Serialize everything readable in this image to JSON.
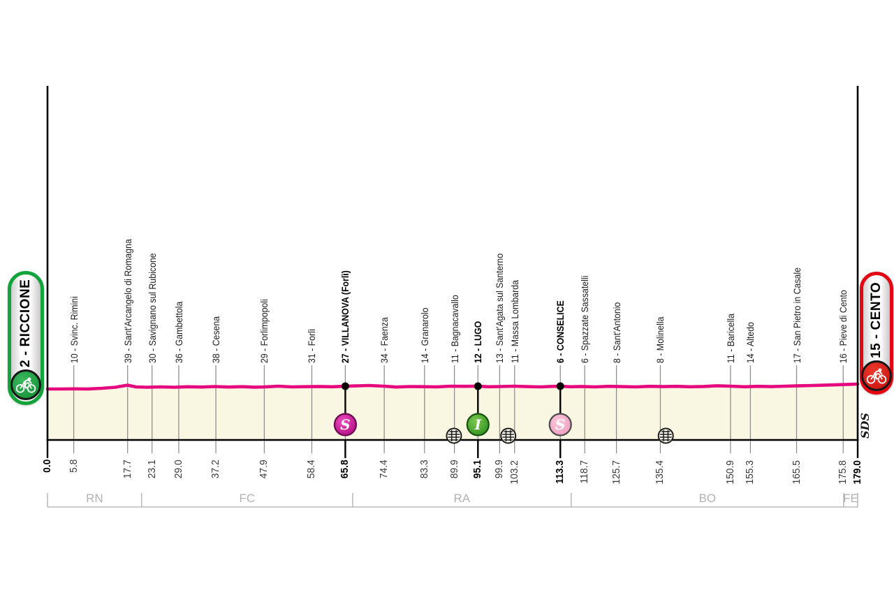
{
  "palette": {
    "pink_line": "#e5087e",
    "area_fill": "#f9f6e2",
    "axis_black": "#000000",
    "waypoint_gray": "#8f8f8f",
    "province_gray": "#bcbcbc",
    "province_text": "#b3b1b1",
    "start_green": "#12a43b",
    "finish_red": "#e30613",
    "sprint_magenta": "#ad0a80",
    "intergiro_green": "#2e8f1e",
    "sprint_light_pink": "#ef9abc"
  },
  "badges": {
    "start": {
      "label": "2 - RICCIONE"
    },
    "finish": {
      "label": "15 - CENTO"
    }
  },
  "signature": "SDS",
  "chart_data": {
    "type": "area",
    "title": "",
    "x_unit": "km",
    "total_km": 179.0,
    "start_label": "2 - RICCIONE",
    "finish_label": "15 - CENTO",
    "grid": false,
    "waypoints": [
      {
        "km": 5.8,
        "label": "10 - Svinc. Rimini",
        "bold": false
      },
      {
        "km": 17.7,
        "label": "39 - Sant'Arcangelo di Romagna",
        "bold": false
      },
      {
        "km": 23.1,
        "label": "30 - Savignano sul Rubicone",
        "bold": false
      },
      {
        "km": 29.0,
        "label": "36 - Gambettola",
        "bold": false
      },
      {
        "km": 37.2,
        "label": "38 - Cesena",
        "bold": false
      },
      {
        "km": 47.9,
        "label": "29 - Forlimpopoli",
        "bold": false
      },
      {
        "km": 58.4,
        "label": "31 - Forlì",
        "bold": false
      },
      {
        "km": 65.8,
        "label": "27 - VILLANOVA (Forlì)",
        "bold": true
      },
      {
        "km": 74.4,
        "label": "34 - Faenza",
        "bold": false
      },
      {
        "km": 83.3,
        "label": "14 - Granarolo",
        "bold": false
      },
      {
        "km": 89.9,
        "label": "11 - Bagnacavallo",
        "bold": false
      },
      {
        "km": 95.1,
        "label": "12 - LUGO",
        "bold": true
      },
      {
        "km": 99.9,
        "label": "13 - Sant'Agata sul Santerno",
        "bold": false
      },
      {
        "km": 103.2,
        "label": "11 - Massa Lombarda",
        "bold": false
      },
      {
        "km": 113.3,
        "label": "6 - CONSELICE",
        "bold": true
      },
      {
        "km": 118.7,
        "label": "6 - Spazzate Sassatelli",
        "bold": false
      },
      {
        "km": 125.7,
        "label": "8 - Sant'Antonio",
        "bold": false
      },
      {
        "km": 135.4,
        "label": "8 - Molinella",
        "bold": false
      },
      {
        "km": 150.9,
        "label": "11 - Baricella",
        "bold": false
      },
      {
        "km": 155.3,
        "label": "14 - Altedo",
        "bold": false
      },
      {
        "km": 165.5,
        "label": "17 - San Pietro in Casale",
        "bold": false
      },
      {
        "km": 175.8,
        "label": "16 - Pieve di Cento",
        "bold": false
      }
    ],
    "km_ticks": [
      {
        "km": 0.0,
        "label": "0.0",
        "bold": true
      },
      {
        "km": 5.8,
        "label": "5.8",
        "bold": false
      },
      {
        "km": 17.7,
        "label": "17.7",
        "bold": false
      },
      {
        "km": 23.1,
        "label": "23.1",
        "bold": false
      },
      {
        "km": 29.0,
        "label": "29.0",
        "bold": false
      },
      {
        "km": 37.2,
        "label": "37.2",
        "bold": false
      },
      {
        "km": 47.9,
        "label": "47.9",
        "bold": false
      },
      {
        "km": 58.4,
        "label": "58.4",
        "bold": false
      },
      {
        "km": 65.8,
        "label": "65.8",
        "bold": true
      },
      {
        "km": 74.4,
        "label": "74.4",
        "bold": false
      },
      {
        "km": 83.3,
        "label": "83.3",
        "bold": false
      },
      {
        "km": 89.9,
        "label": "89.9",
        "bold": false
      },
      {
        "km": 95.1,
        "label": "95.1",
        "bold": true
      },
      {
        "km": 99.9,
        "label": "99.9",
        "bold": false
      },
      {
        "km": 103.2,
        "label": "103.2",
        "bold": false
      },
      {
        "km": 113.3,
        "label": "113.3",
        "bold": true
      },
      {
        "km": 118.7,
        "label": "118.7",
        "bold": false
      },
      {
        "km": 125.7,
        "label": "125.7",
        "bold": false
      },
      {
        "km": 135.4,
        "label": "135.4",
        "bold": false
      },
      {
        "km": 150.9,
        "label": "150.9",
        "bold": false
      },
      {
        "km": 155.3,
        "label": "155.3",
        "bold": false
      },
      {
        "km": 165.5,
        "label": "165.5",
        "bold": false
      },
      {
        "km": 175.8,
        "label": "175.8",
        "bold": false
      },
      {
        "km": 179.0,
        "label": "179.0",
        "bold": true
      }
    ],
    "markers": [
      {
        "km": 65.8,
        "letter": "S",
        "style": "magenta",
        "name": "sprint-villanova"
      },
      {
        "km": 95.1,
        "letter": "I",
        "style": "green",
        "name": "intergiro-lugo"
      },
      {
        "km": 113.3,
        "letter": "S",
        "style": "light-pink",
        "name": "sprint-conselice"
      }
    ],
    "level_crossings_km": [
      89.8,
      101.8,
      136.6
    ],
    "provinces": [
      {
        "code": "RN",
        "from_km": 0.0,
        "to_km": 20.8
      },
      {
        "code": "FC",
        "from_km": 20.8,
        "to_km": 67.4
      },
      {
        "code": "RA",
        "from_km": 67.4,
        "to_km": 115.7
      },
      {
        "code": "BO",
        "from_km": 115.7,
        "to_km": 175.9
      },
      {
        "code": "FE",
        "from_km": 175.9,
        "to_km": 179.0
      }
    ],
    "profile": [
      [
        0,
        73
      ],
      [
        3,
        73
      ],
      [
        6,
        73.2
      ],
      [
        9,
        73
      ],
      [
        12,
        74
      ],
      [
        15,
        75.5
      ],
      [
        17.7,
        78.5
      ],
      [
        19.5,
        76
      ],
      [
        22,
        75.5
      ],
      [
        25,
        76
      ],
      [
        28,
        75.5
      ],
      [
        31,
        76.2
      ],
      [
        34,
        75.8
      ],
      [
        37,
        76.5
      ],
      [
        40,
        75.8
      ],
      [
        43,
        76.3
      ],
      [
        46,
        75.6
      ],
      [
        48,
        76
      ],
      [
        51,
        77
      ],
      [
        54,
        76
      ],
      [
        57,
        76.3
      ],
      [
        60,
        76.6
      ],
      [
        63,
        76.2
      ],
      [
        65.8,
        77
      ],
      [
        68.5,
        77.5
      ],
      [
        71,
        78
      ],
      [
        74.4,
        77
      ],
      [
        77,
        75.8
      ],
      [
        80,
        76.5
      ],
      [
        83,
        76.3
      ],
      [
        86,
        76
      ],
      [
        89,
        77
      ],
      [
        92,
        76.8
      ],
      [
        95.1,
        77
      ],
      [
        97.5,
        76.2
      ],
      [
        100,
        76.5
      ],
      [
        103,
        77
      ],
      [
        106,
        76.4
      ],
      [
        109,
        76
      ],
      [
        111,
        76.6
      ],
      [
        113.3,
        77
      ],
      [
        115.5,
        76.2
      ],
      [
        118,
        76.6
      ],
      [
        121,
        76
      ],
      [
        124,
        76.8
      ],
      [
        127,
        76.4
      ],
      [
        130,
        76
      ],
      [
        133,
        76.8
      ],
      [
        136,
        76.4
      ],
      [
        139,
        76.8
      ],
      [
        142,
        76.2
      ],
      [
        145,
        76.6
      ],
      [
        148,
        77.6
      ],
      [
        151,
        77
      ],
      [
        154,
        76.2
      ],
      [
        157,
        76.8
      ],
      [
        160,
        76.4
      ],
      [
        163,
        77
      ],
      [
        166,
        77.6
      ],
      [
        169,
        78
      ],
      [
        172,
        78.6
      ],
      [
        175,
        79.2
      ],
      [
        179,
        80
      ]
    ]
  }
}
